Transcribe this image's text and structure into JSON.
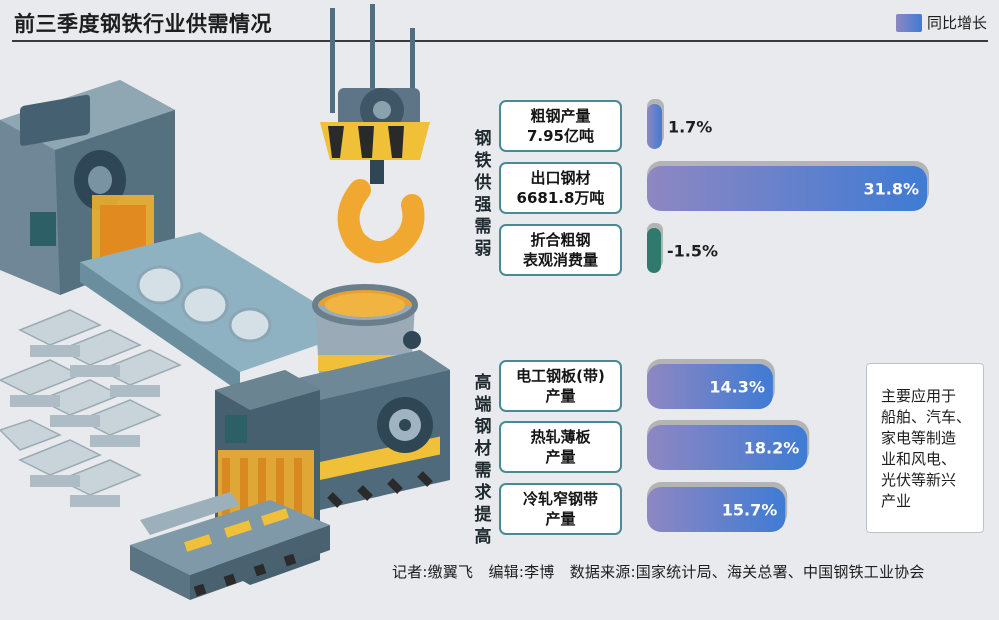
{
  "title": "前三季度钢铁行业供需情况",
  "legend": {
    "label": "同比增长"
  },
  "groups": [
    {
      "label": "钢铁供强需弱"
    },
    {
      "label": "高端钢材需求提高"
    }
  ],
  "items": [
    {
      "line1": "粗钢产量",
      "line2": "7.95亿吨",
      "value_label": "1.7%"
    },
    {
      "line1": "出口钢材",
      "line2": "6681.8万吨",
      "value_label": "31.8%"
    },
    {
      "line1": "折合粗钢",
      "line2": "表观消费量",
      "value_label": "-1.5%"
    },
    {
      "line1": "电工钢板(带)",
      "line2": "产量",
      "value_label": "14.3%"
    },
    {
      "line1": "热轧薄板",
      "line2": "产量",
      "value_label": "18.2%"
    },
    {
      "line1": "冷轧窄钢带",
      "line2": "产量",
      "value_label": "15.7%"
    }
  ],
  "note": {
    "lines": [
      "主要应用于",
      "船舶、汽车、",
      "家电等制造",
      "业和风电、",
      "光伏等新兴",
      "产业"
    ]
  },
  "footer": "记者:缴翼飞　编辑:李博　数据来源:国家统计局、海关总署、中国钢铁工业协会",
  "colors": {
    "bar_start": "#8e87c2",
    "bar_end": "#3f7bd4",
    "negative": "#2f7a6c",
    "shadow": "#b4b4b4"
  },
  "chart_data": {
    "type": "bar",
    "orientation": "horizontal",
    "categories": [
      "粗钢产量 7.95亿吨",
      "出口钢材 6681.8万吨",
      "折合粗钢 表观消费量",
      "电工钢板(带) 产量",
      "热轧薄板 产量",
      "冷轧窄钢带 产量"
    ],
    "values": [
      1.7,
      31.8,
      -1.5,
      14.3,
      18.2,
      15.7
    ],
    "series": [
      {
        "name": "同比增长",
        "values": [
          1.7,
          31.8,
          -1.5,
          14.3,
          18.2,
          15.7
        ]
      }
    ],
    "legend": "top-right",
    "grid": false
  }
}
